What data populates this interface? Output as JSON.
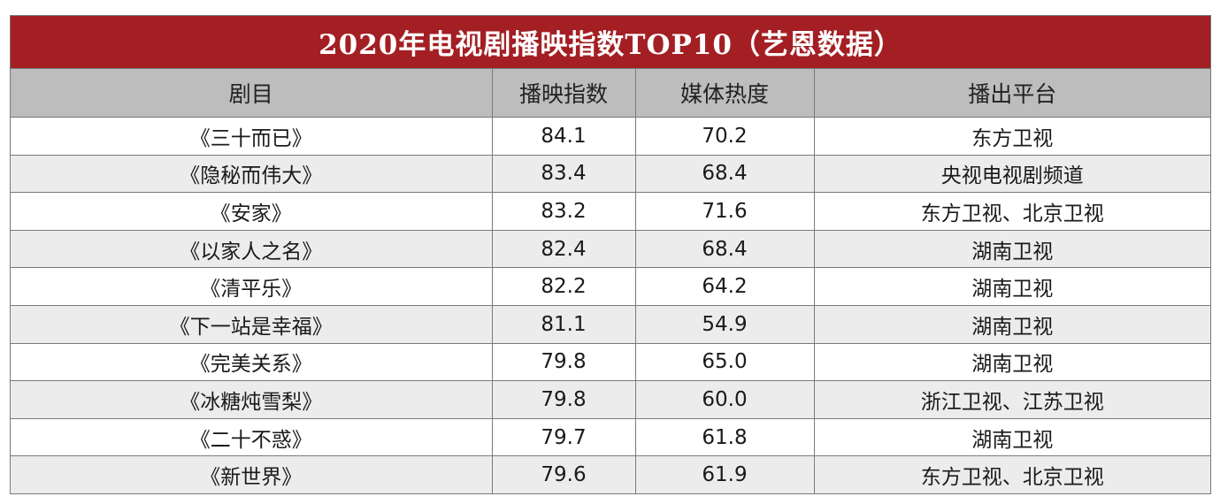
{
  "title": "2020年电视剧播映指数TOP10（艺恩数据）",
  "columns": [
    "剧目",
    "播映指数",
    "媒体热度",
    "播出平台"
  ],
  "rows": [
    {
      "name": "《三十而已》",
      "index": "84.1",
      "heat": "70.2",
      "platform": "东方卫视"
    },
    {
      "name": "《隐秘而伟大》",
      "index": "83.4",
      "heat": "68.4",
      "platform": "央视电视剧频道"
    },
    {
      "name": "《安家》",
      "index": "83.2",
      "heat": "71.6",
      "platform": "东方卫视、北京卫视"
    },
    {
      "name": "《以家人之名》",
      "index": "82.4",
      "heat": "68.4",
      "platform": "湖南卫视"
    },
    {
      "name": "《清平乐》",
      "index": "82.2",
      "heat": "64.2",
      "platform": "湖南卫视"
    },
    {
      "name": "《下一站是幸福》",
      "index": "81.1",
      "heat": "54.9",
      "platform": "湖南卫视"
    },
    {
      "name": "《完美关系》",
      "index": "79.8",
      "heat": "65.0",
      "platform": "湖南卫视"
    },
    {
      "name": "《冰糖炖雪梨》",
      "index": "79.8",
      "heat": "60.0",
      "platform": "浙江卫视、江苏卫视"
    },
    {
      "name": "《二十不惑》",
      "index": "79.7",
      "heat": "61.8",
      "platform": "湖南卫视"
    },
    {
      "name": "《新世界》",
      "index": "79.6",
      "heat": "61.9",
      "platform": "东方卫视、北京卫视"
    }
  ],
  "colors": {
    "title_bg": "#a31f24",
    "header_bg": "#bdbdbd",
    "row_alt_bg": "#ececec"
  }
}
